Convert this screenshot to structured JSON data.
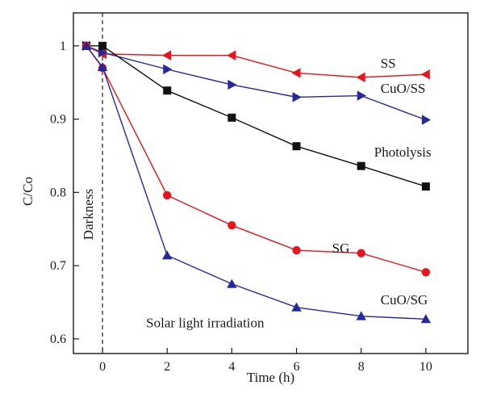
{
  "chart_data": {
    "type": "line",
    "xlabel": "Time (h)",
    "ylabel": "C/Co",
    "xlim": [
      -0.9,
      11.3
    ],
    "ylim": [
      0.58,
      1.045
    ],
    "xticks": [
      0,
      2,
      4,
      6,
      8,
      10
    ],
    "xtick_labels": [
      "0",
      "2",
      "4",
      "6",
      "8",
      "10"
    ],
    "yticks": [
      0.6,
      0.7,
      0.8,
      0.9,
      1.0
    ],
    "ytick_labels": [
      "0.6",
      "0.7",
      "0.8",
      "0.9",
      "1"
    ],
    "grid": false,
    "series": [
      {
        "name": "SS",
        "color": "#e8141e",
        "marker": "triangle-left",
        "x": [
          -0.5,
          0,
          2,
          4,
          6,
          8,
          10
        ],
        "y": [
          1.0,
          0.989,
          0.987,
          0.987,
          0.963,
          0.957,
          0.961
        ]
      },
      {
        "name": "CuO/SS",
        "color": "#27289a",
        "marker": "triangle-right",
        "x": [
          -0.5,
          0,
          2,
          4,
          6,
          8,
          10
        ],
        "y": [
          1.0,
          0.991,
          0.968,
          0.947,
          0.93,
          0.932,
          0.899
        ]
      },
      {
        "name": "Photolysis",
        "color": "#111111",
        "marker": "square",
        "x": [
          -0.5,
          0,
          2,
          4,
          6,
          8,
          10
        ],
        "y": [
          1.0,
          1.0,
          0.939,
          0.902,
          0.863,
          0.836,
          0.808
        ]
      },
      {
        "name": "SG",
        "color": "#e8141e",
        "marker": "circle",
        "x": [
          -0.5,
          0,
          2,
          4,
          6,
          8,
          10
        ],
        "y": [
          1.0,
          0.97,
          0.796,
          0.755,
          0.721,
          0.717,
          0.691
        ]
      },
      {
        "name": "CuO/SG",
        "color": "#27289a",
        "marker": "triangle-up",
        "x": [
          -0.5,
          0,
          2,
          4,
          6,
          8,
          10
        ],
        "y": [
          1.0,
          0.971,
          0.714,
          0.675,
          0.643,
          0.631,
          0.627
        ]
      }
    ],
    "series_labels": [
      {
        "text": "SS",
        "x": 8.6,
        "y": 0.97
      },
      {
        "text": "CuO/SS",
        "x": 8.6,
        "y": 0.936
      },
      {
        "text": "Photolysis",
        "x": 8.4,
        "y": 0.849
      },
      {
        "text": "SG",
        "x": 7.1,
        "y": 0.718
      },
      {
        "text": "CuO/SG",
        "x": 8.6,
        "y": 0.647
      }
    ],
    "annotations": {
      "darkness": "Darkness",
      "solar": "Solar light irradiation",
      "divider_x": 0
    }
  }
}
